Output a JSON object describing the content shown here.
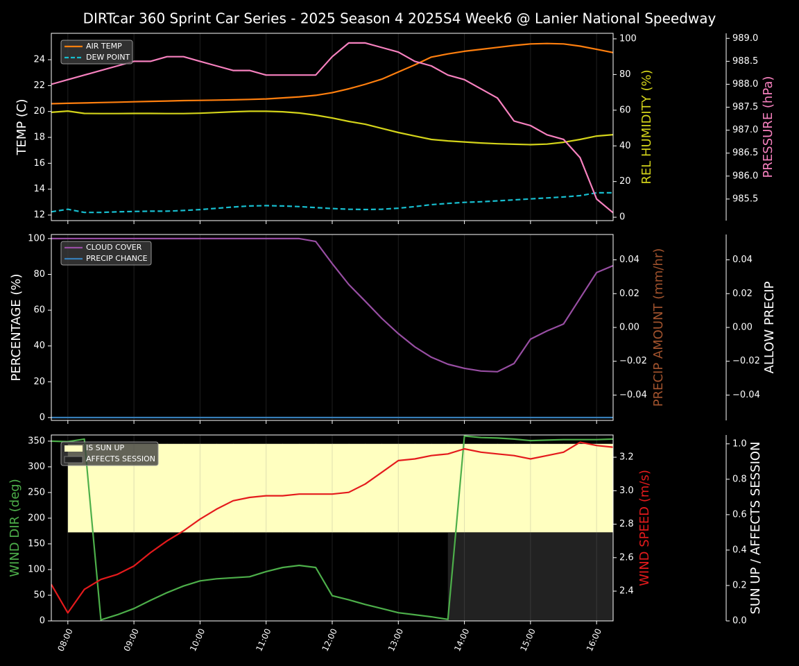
{
  "chart_data": [
    {
      "type": "line",
      "title": "DIRTcar 360 Sprint Car Series - 2025 Season 4 2025S4 Week6 @ Lanier National Speedway",
      "x": [
        "07:45",
        "08:00",
        "08:15",
        "08:30",
        "08:45",
        "09:00",
        "09:15",
        "09:30",
        "09:45",
        "10:00",
        "10:15",
        "10:30",
        "10:45",
        "11:00",
        "11:15",
        "11:30",
        "11:45",
        "12:00",
        "12:15",
        "12:30",
        "12:45",
        "13:00",
        "13:15",
        "13:30",
        "13:45",
        "14:00",
        "14:15",
        "14:30",
        "14:45",
        "15:00",
        "15:15",
        "15:30",
        "15:45",
        "16:00",
        "16:15"
      ],
      "xlim": [
        "07:45",
        "16:15"
      ],
      "xticks": [
        "08:00",
        "09:00",
        "10:00",
        "11:00",
        "12:00",
        "13:00",
        "14:00",
        "15:00",
        "16:00"
      ],
      "ylabel": "TEMP (C)",
      "ylabel_color": "#ffffff",
      "ylim": [
        11.57,
        26.04
      ],
      "yticks": [
        12,
        14,
        16,
        18,
        20,
        22,
        24
      ],
      "y2label": "REL HUMIDITY (%)",
      "y2label_color": "#d4d41a",
      "y2lim": [
        -1.9,
        103.1
      ],
      "y2ticks": [
        0,
        20,
        40,
        60,
        80,
        100
      ],
      "y3label": "PRESSURE (hPa)",
      "y3label_color": "#f781bf",
      "y3lim": [
        985.03,
        989.11
      ],
      "y3ticks": [
        985.5,
        {
          "value": 986.0,
          "label": "986.0"
        },
        986.5,
        {
          "value": 987.0,
          "label": "987.0"
        },
        987.5,
        {
          "value": 988.0,
          "label": "988.0"
        },
        988.5,
        {
          "value": 989.0,
          "label": "989.0"
        }
      ],
      "series": [
        {
          "name": "AIR TEMP",
          "color": "#ff7f0e",
          "axis": "y",
          "legend": true,
          "values": [
            20.6,
            20.63,
            20.66,
            20.69,
            20.72,
            20.75,
            20.78,
            20.81,
            20.84,
            20.86,
            20.88,
            20.9,
            20.93,
            20.97,
            21.05,
            21.13,
            21.25,
            21.45,
            21.75,
            22.1,
            22.5,
            23.05,
            23.6,
            24.2,
            24.45,
            24.65,
            24.8,
            24.95,
            25.1,
            25.22,
            25.25,
            25.22,
            25.05,
            24.8,
            24.55
          ]
        },
        {
          "name": "DEW POINT",
          "color": "#17becf",
          "axis": "y",
          "dash": true,
          "legend": true,
          "values": [
            12.25,
            12.45,
            12.2,
            12.2,
            12.25,
            12.28,
            12.3,
            12.3,
            12.35,
            12.42,
            12.52,
            12.62,
            12.7,
            12.73,
            12.7,
            12.65,
            12.58,
            12.5,
            12.45,
            12.43,
            12.45,
            12.53,
            12.65,
            12.8,
            12.9,
            12.98,
            13.03,
            13.1,
            13.17,
            13.25,
            13.32,
            13.4,
            13.5,
            13.72,
            13.72
          ]
        },
        {
          "color": "#d4d41a",
          "axis": "y2",
          "values": [
            58.8,
            59.5,
            58.2,
            58.1,
            58.1,
            58.2,
            58.2,
            58.1,
            58.1,
            58.3,
            58.7,
            59.1,
            59.4,
            59.4,
            59.1,
            58.4,
            57.2,
            55.6,
            53.7,
            52.1,
            49.8,
            47.5,
            45.5,
            43.6,
            42.8,
            42.2,
            41.6,
            41.2,
            40.9,
            40.7,
            41,
            42,
            43.6,
            45.5,
            46.3
          ]
        },
        {
          "color": "#f781bf",
          "axis": "y3",
          "values": [
            988.0,
            988.1,
            988.2,
            988.3,
            988.4,
            988.5,
            988.5,
            988.6,
            988.6,
            988.5,
            988.4,
            988.3,
            988.3,
            988.2,
            988.2,
            988.2,
            988.2,
            988.6,
            988.9,
            988.9,
            988.8,
            988.7,
            988.5,
            988.4,
            988.2,
            988.1,
            987.9,
            987.7,
            987.2,
            987.1,
            986.9,
            986.8,
            986.4,
            985.5,
            985.2
          ]
        }
      ]
    },
    {
      "type": "line",
      "x": [
        "07:45",
        "08:00",
        "08:15",
        "08:30",
        "08:45",
        "09:00",
        "09:15",
        "09:30",
        "09:45",
        "10:00",
        "10:15",
        "10:30",
        "10:45",
        "11:00",
        "11:15",
        "11:30",
        "11:45",
        "12:00",
        "12:15",
        "12:30",
        "12:45",
        "13:00",
        "13:15",
        "13:30",
        "13:45",
        "14:00",
        "14:15",
        "14:30",
        "14:45",
        "15:00",
        "15:15",
        "15:30",
        "15:45",
        "16:00",
        "16:15"
      ],
      "xlim": [
        "07:45",
        "16:15"
      ],
      "xticks": [
        "08:00",
        "09:00",
        "10:00",
        "11:00",
        "12:00",
        "13:00",
        "14:00",
        "15:00",
        "16:00"
      ],
      "ylabel": "PERCENTAGE (%)",
      "ylabel_color": "#ffffff",
      "ylim": [
        -1.6,
        102.3
      ],
      "yticks": [
        0,
        20,
        40,
        60,
        80,
        100
      ],
      "y2label": "PRECIP AMOUNT (mm/hr)",
      "y2label_color": "#a0522d",
      "y2lim": [
        -0.055,
        0.055
      ],
      "y2ticks": [
        {
          "value": -0.04,
          "label": "−0.04"
        },
        {
          "value": -0.02,
          "label": "−0.02"
        },
        {
          "value": 0,
          "label": "0.00"
        },
        0.02,
        0.04
      ],
      "y3label": "ALLOW PRECIP",
      "y3label_color": "#ffffff",
      "y3lim": [
        -0.055,
        0.055
      ],
      "y3ticks": [
        {
          "value": -0.04,
          "label": "−0.04"
        },
        {
          "value": -0.02,
          "label": "−0.02"
        },
        {
          "value": 0,
          "label": "0.00"
        },
        0.02,
        0.04
      ],
      "series": [
        {
          "name": "CLOUD COVER",
          "color": "#984ea3",
          "axis": "y",
          "legend": true,
          "values": [
            100,
            100,
            100,
            100,
            100,
            100,
            100,
            100,
            100,
            100,
            100,
            100,
            100,
            100,
            100,
            100,
            98.4,
            86,
            74.4,
            65,
            55.4,
            46.9,
            39.5,
            33.7,
            29.8,
            27.5,
            26,
            25.6,
            30.2,
            43.8,
            48.4,
            52.3,
            66.7,
            81,
            84.9
          ]
        },
        {
          "name": "PRECIP CHANCE",
          "color": "#377eb8",
          "axis": "y",
          "legend": true,
          "values": [
            0,
            0,
            0,
            0,
            0,
            0,
            0,
            0,
            0,
            0,
            0,
            0,
            0,
            0,
            0,
            0,
            0,
            0,
            0,
            0,
            0,
            0,
            0,
            0,
            0,
            0,
            0,
            0,
            0,
            0,
            0,
            0,
            0,
            0,
            0
          ]
        }
      ]
    },
    {
      "type": "line",
      "x": [
        "07:45",
        "08:00",
        "08:15",
        "08:30",
        "08:45",
        "09:00",
        "09:15",
        "09:30",
        "09:45",
        "10:00",
        "10:15",
        "10:30",
        "10:45",
        "11:00",
        "11:15",
        "11:30",
        "11:45",
        "12:00",
        "12:15",
        "12:30",
        "12:45",
        "13:00",
        "13:15",
        "13:30",
        "13:45",
        "14:00",
        "14:15",
        "14:30",
        "14:45",
        "15:00",
        "15:15",
        "15:30",
        "15:45",
        "16:00",
        "16:15"
      ],
      "xlim": [
        "07:45",
        "16:15"
      ],
      "xticks": [
        "08:00",
        "09:00",
        "10:00",
        "11:00",
        "12:00",
        "13:00",
        "14:00",
        "15:00",
        "16:00"
      ],
      "xticklabels": true,
      "ylabel": "WIND DIR (deg)",
      "ylabel_color": "#4daf4a",
      "ylim": [
        0,
        362
      ],
      "yticks": [
        0,
        50,
        100,
        150,
        200,
        250,
        300,
        350
      ],
      "y2label": "WIND SPEED (m/s)",
      "y2label_color": "#e41a1c",
      "y2lim": [
        2.222,
        3.333
      ],
      "y2ticks": [
        2.4,
        2.6,
        2.8,
        {
          "value": 3.0,
          "label": "3.0"
        },
        3.2
      ],
      "y3label": "SUN UP / AFFECTS SESSION",
      "y3label_color": "#ffffff",
      "y3lim": [
        0,
        1.05
      ],
      "y3ticks": [
        {
          "value": 0,
          "label": "0.0"
        },
        0.2,
        0.4,
        0.6,
        0.8,
        {
          "value": 1,
          "label": "1.0"
        }
      ],
      "series": [
        {
          "name": "IS SUN UP",
          "color": "#ffffc0",
          "axis": "y3",
          "kind": "upper-band",
          "legend": true,
          "values": [
            0,
            1,
            1,
            1,
            1,
            1,
            1,
            1,
            1,
            1,
            1,
            1,
            1,
            1,
            1,
            1,
            1,
            1,
            1,
            1,
            1,
            1,
            1,
            1,
            1,
            1,
            1,
            1,
            1,
            1,
            1,
            1,
            1,
            1,
            1
          ]
        },
        {
          "name": "AFFECTS SESSION",
          "color": "#222222",
          "axis": "y3",
          "kind": "area",
          "legend": true,
          "values": [
            0,
            0,
            0,
            0,
            0,
            0,
            0,
            0,
            0,
            0,
            0,
            0,
            0,
            0,
            0,
            0,
            0,
            0,
            0,
            0,
            0,
            0,
            0,
            0,
            0.5,
            0.5,
            0.5,
            0.5,
            0.5,
            0.5,
            0.5,
            0.5,
            0.5,
            0.5,
            0.5
          ]
        },
        {
          "color": "#4daf4a",
          "axis": "y",
          "values": [
            350,
            349,
            354,
            2,
            12,
            24,
            40,
            55,
            68,
            78,
            82,
            84,
            86,
            96,
            104,
            108,
            104,
            49,
            41,
            32,
            24,
            16,
            12,
            8,
            3,
            360,
            357,
            356,
            354,
            351,
            352,
            353,
            353,
            353,
            354
          ]
        },
        {
          "color": "#e41a1c",
          "axis": "y2",
          "values": [
            2.44,
            2.27,
            2.41,
            2.47,
            2.5,
            2.55,
            2.63,
            2.7,
            2.76,
            2.83,
            2.89,
            2.94,
            2.96,
            2.97,
            2.97,
            2.98,
            2.98,
            2.98,
            2.99,
            3.04,
            3.11,
            3.18,
            3.19,
            3.21,
            3.22,
            3.25,
            3.23,
            3.22,
            3.21,
            3.19,
            3.21,
            3.23,
            3.29,
            3.27,
            3.26
          ]
        }
      ]
    }
  ]
}
